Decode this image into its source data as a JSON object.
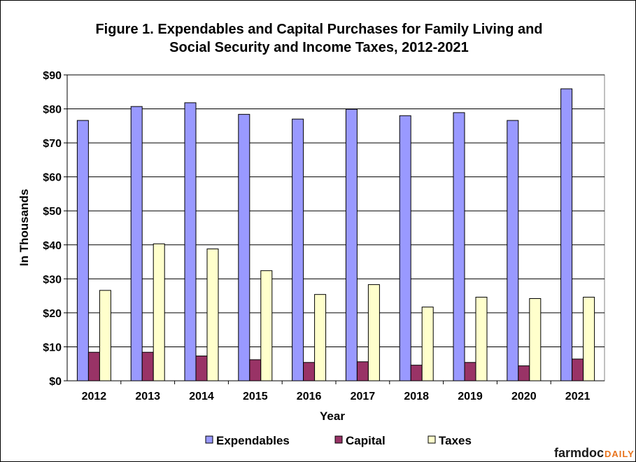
{
  "chart_data": {
    "type": "bar",
    "title": [
      "Figure 1. Expendables and Capital Purchases for Family Living and",
      "Social Security and Income Taxes, 2012-2021"
    ],
    "xlabel": "Year",
    "ylabel": "In Thousands",
    "ylim": [
      0,
      90
    ],
    "yticks": [
      "$0",
      "$10",
      "$20",
      "$30",
      "$40",
      "$50",
      "$60",
      "$70",
      "$80",
      "$90"
    ],
    "grid": true,
    "legend_position": "bottom",
    "categories": [
      "2012",
      "2013",
      "2014",
      "2015",
      "2016",
      "2017",
      "2018",
      "2019",
      "2020",
      "2021"
    ],
    "series": [
      {
        "name": "Expendables",
        "color": "#9999ff",
        "values": [
          76.6,
          80.7,
          81.8,
          78.4,
          77.0,
          79.9,
          78.0,
          78.9,
          76.6,
          85.9
        ]
      },
      {
        "name": "Capital",
        "color": "#993366",
        "values": [
          8.4,
          8.4,
          7.3,
          6.2,
          5.4,
          5.6,
          4.6,
          5.4,
          4.4,
          6.4
        ]
      },
      {
        "name": "Taxes",
        "color": "#ffffcc",
        "values": [
          26.6,
          40.3,
          38.8,
          32.4,
          25.4,
          28.3,
          21.7,
          24.6,
          24.2,
          24.6
        ]
      }
    ]
  },
  "branding": {
    "part1": "farmdoc",
    "part2": "DAILY"
  }
}
